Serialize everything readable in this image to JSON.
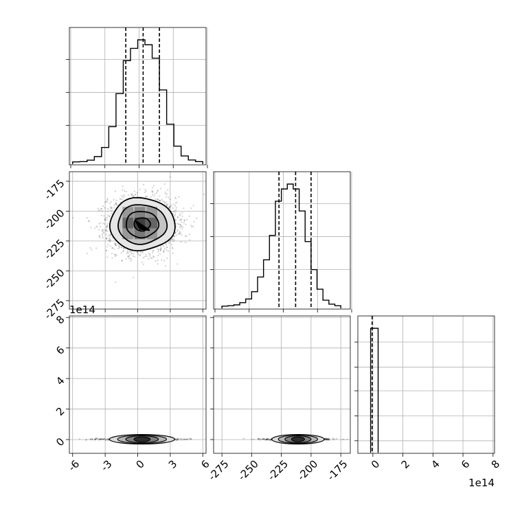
{
  "chart_data": [
    {
      "type": "histogram",
      "panel": "marginal-param-1",
      "x_range": [
        -6.3,
        6.3
      ],
      "bin_edges": [
        -6,
        -5.333,
        -4.667,
        -4,
        -3.333,
        -2.667,
        -2,
        -1.333,
        -0.667,
        0,
        0.667,
        1.333,
        2,
        2.667,
        3.333,
        4,
        4.667,
        5.333,
        6
      ],
      "values": [
        0.002,
        0.004,
        0.016,
        0.045,
        0.12,
        0.29,
        0.56,
        0.83,
        0.93,
        1.0,
        0.96,
        0.85,
        0.59,
        0.31,
        0.13,
        0.05,
        0.017,
        0.004
      ],
      "quantile_lines": [
        -1.1,
        0.5,
        2.0
      ],
      "yticks_shown_without_labels": true,
      "grid": true
    },
    {
      "type": "scatter-density",
      "panel": "joint-param-1-param-2",
      "x_range": [
        -6.3,
        6.3
      ],
      "y_range": [
        -282,
        -167
      ],
      "yticks": [
        "-175",
        "-200",
        "-225",
        "-250",
        "-275"
      ],
      "ytick_values": [
        -175,
        -200,
        -225,
        -250,
        -275
      ],
      "center": [
        0.4,
        -211
      ],
      "sigma": [
        1.5,
        11
      ],
      "contour_sigma_levels": [
        0.5,
        1.0,
        1.5,
        2.0
      ],
      "grid": true
    },
    {
      "type": "histogram",
      "panel": "marginal-param-2",
      "x_range": [
        -282,
        -167
      ],
      "bin_edges": [
        -275,
        -270,
        -265,
        -260,
        -255,
        -250,
        -245,
        -240,
        -235,
        -230,
        -225,
        -220,
        -215,
        -210,
        -205,
        -200,
        -195,
        -190,
        -185,
        -180,
        -175
      ],
      "values": [
        0.002,
        0.005,
        0.012,
        0.03,
        0.06,
        0.12,
        0.24,
        0.38,
        0.58,
        0.86,
        0.96,
        1.0,
        0.96,
        0.78,
        0.53,
        0.3,
        0.14,
        0.05,
        0.018,
        0.005
      ],
      "quantile_lines": [
        -227,
        -213,
        -200
      ],
      "yticks_shown_without_labels": true,
      "grid": true
    },
    {
      "type": "scatter-density",
      "panel": "joint-param-1-param-3",
      "x_range": [
        -6.3,
        6.3
      ],
      "y_range": [
        -0.9,
        8.1
      ],
      "yticks": [
        "0",
        "2",
        "4",
        "6",
        "8"
      ],
      "ytick_values": [
        0,
        2,
        4,
        6,
        8
      ],
      "y_offset_label": "1e14",
      "xticks": [
        "-6",
        "-3",
        "0",
        "3",
        "6"
      ],
      "xtick_values": [
        -6,
        -3,
        0,
        3,
        6
      ],
      "center": [
        0.4,
        0.02
      ],
      "grid": true
    },
    {
      "type": "scatter-density",
      "panel": "joint-param-2-param-3",
      "x_range": [
        -282,
        -167
      ],
      "y_range": [
        -0.9,
        8.1
      ],
      "xticks": [
        "-275",
        "-250",
        "-225",
        "-200",
        "-175"
      ],
      "xtick_values": [
        -275,
        -250,
        -225,
        -200,
        -175
      ],
      "center": [
        -211,
        0.02
      ],
      "grid": true
    },
    {
      "type": "histogram",
      "panel": "marginal-param-3",
      "x_range": [
        -1.0,
        8.1
      ],
      "bin_edges": [
        -0.15,
        0.35
      ],
      "values": [
        1.0
      ],
      "quantile_lines": [
        -0.05
      ],
      "xticks": [
        "0",
        "2",
        "4",
        "6",
        "8"
      ],
      "xtick_values": [
        0,
        2,
        4,
        6,
        8
      ],
      "x_offset_label": "1e14",
      "yticks_shown_without_labels": true,
      "grid": true
    }
  ]
}
